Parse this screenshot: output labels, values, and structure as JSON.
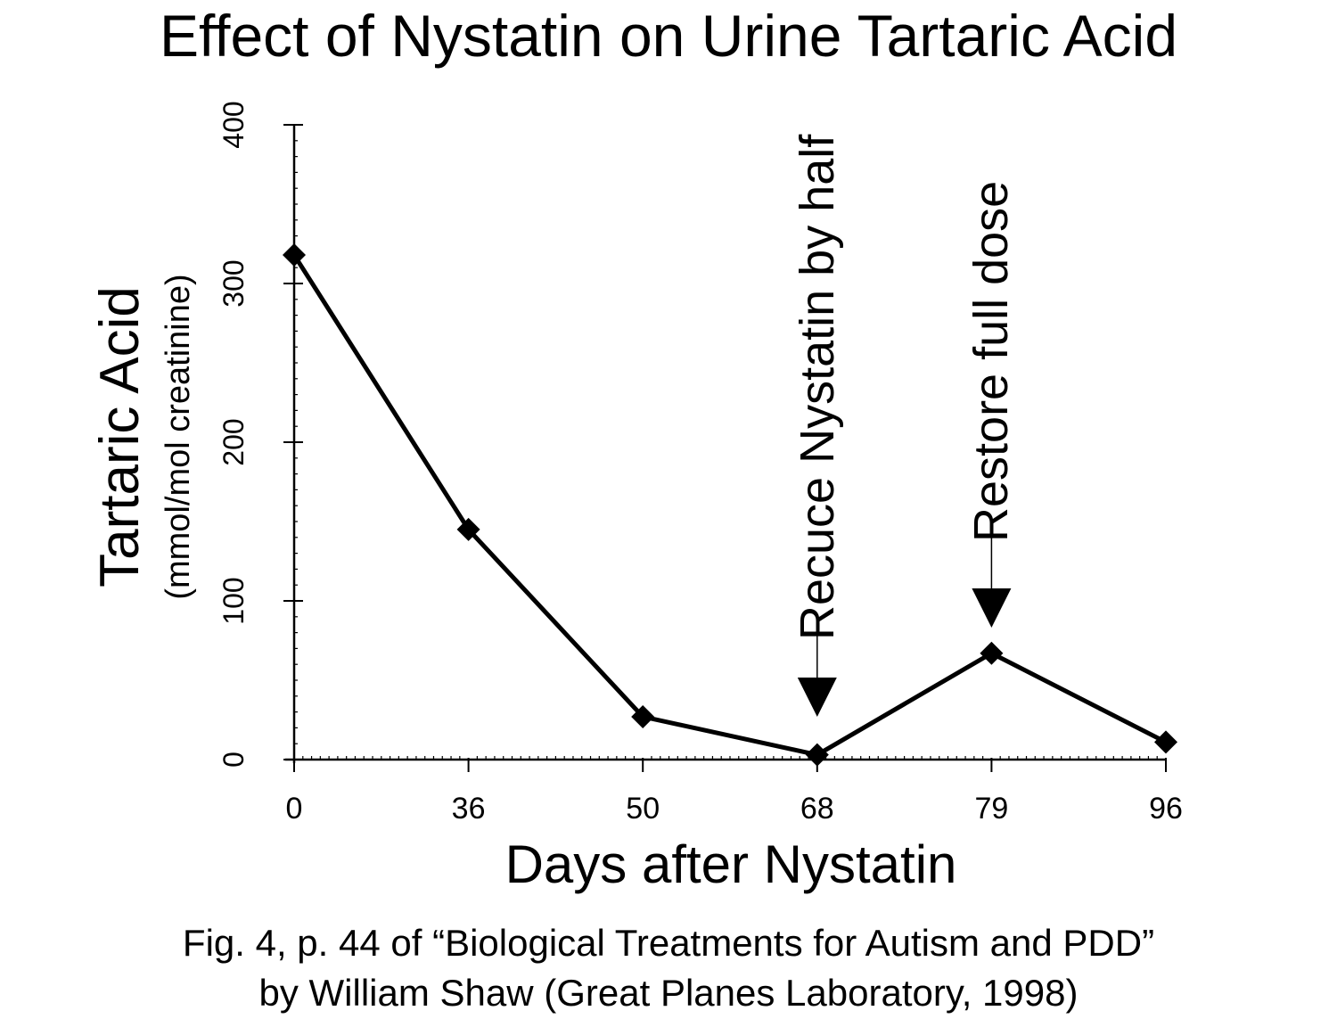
{
  "title": "Effect of Nystatin on Urine Tartaric Acid",
  "caption": {
    "line1": "Fig. 4, p. 44 of “Biological Treatments for Autism and PDD”",
    "line2": "by William Shaw (Great Planes Laboratory, 1998)"
  },
  "chart_data": {
    "type": "line",
    "title": "Effect of Nystatin on Urine Tartaric Acid",
    "xlabel": "Days after Nystatin",
    "ylabel": "Tartaric Acid",
    "ylabel_sub": "(mmol/mol creatinine)",
    "x_scale": "categorical",
    "categories": [
      "0",
      "36",
      "50",
      "68",
      "79",
      "96"
    ],
    "values": [
      318,
      145,
      27,
      3,
      67,
      11
    ],
    "yticks": [
      "0",
      "100",
      "200",
      "300",
      "400"
    ],
    "ylim": [
      0,
      400
    ],
    "grid": false,
    "legend": "none",
    "marker": "diamond",
    "annotations": [
      {
        "text": "Recuce Nystatin by half",
        "at_category": "68",
        "direction": "down-arrow"
      },
      {
        "text": "Restore full dose",
        "at_category": "79",
        "direction": "down-arrow"
      }
    ]
  }
}
